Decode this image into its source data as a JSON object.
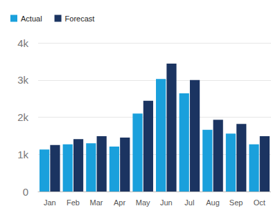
{
  "chart_data": {
    "type": "bar",
    "categories": [
      "Jan",
      "Feb",
      "Mar",
      "Apr",
      "May",
      "Jun",
      "Jul",
      "Aug",
      "Sep",
      "Oct"
    ],
    "series": [
      {
        "name": "Actual",
        "color": "#1aa0dc",
        "values": [
          1130,
          1270,
          1300,
          1210,
          2100,
          3030,
          2640,
          1660,
          1560,
          1270
        ]
      },
      {
        "name": "Forecast",
        "color": "#1b3461",
        "values": [
          1250,
          1410,
          1490,
          1450,
          2440,
          3440,
          3000,
          1930,
          1820,
          1490
        ]
      }
    ],
    "ylim": [
      0,
      4000
    ],
    "yticks": [
      0,
      {
        "value": 1000,
        "label": "1k"
      },
      {
        "value": 2000,
        "label": "2k"
      },
      {
        "value": 3000,
        "label": "3k"
      },
      {
        "value": 4000,
        "label": "4k"
      }
    ],
    "grid": true,
    "legend": "top-left"
  }
}
